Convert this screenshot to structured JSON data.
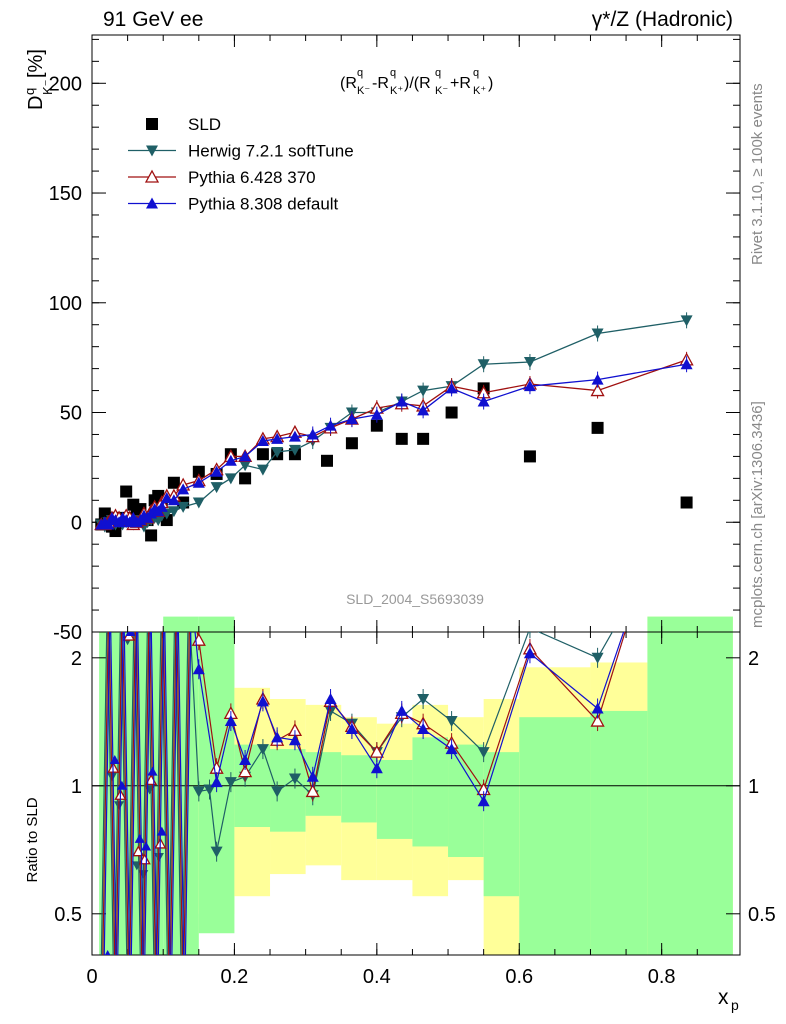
{
  "header": {
    "left": "91 GeV ee",
    "right": "γ*/Z (Hadronic)"
  },
  "side_text": {
    "rivet": "Rivet 3.1.10, ≥ 100k events",
    "url": "mcplots.cern.ch [arXiv:1306.3436]"
  },
  "watermark": "SLD_2004_S5693039",
  "chart_data": [
    {
      "type": "scatter",
      "panel": "main",
      "formula": "(R_K-^q - R_K+^q)/(R_K-^q + R_K+^q)",
      "ylabel": "D_K-^q [%]",
      "xlabel": "x_p",
      "xlim": [
        0,
        0.91
      ],
      "ylim": [
        -50,
        222
      ],
      "yticks": [
        -50,
        0,
        50,
        100,
        150,
        200
      ],
      "xticks": [
        0,
        0.2,
        0.4,
        0.6,
        0.8
      ],
      "legend_position": "top-left",
      "series": [
        {
          "name": "SLD",
          "marker": "square",
          "color": "#000000",
          "x": [
            0.013,
            0.018,
            0.023,
            0.028,
            0.033,
            0.038,
            0.043,
            0.048,
            0.053,
            0.058,
            0.063,
            0.068,
            0.073,
            0.078,
            0.083,
            0.088,
            0.093,
            0.098,
            0.105,
            0.115,
            0.128,
            0.15,
            0.175,
            0.195,
            0.215,
            0.24,
            0.26,
            0.285,
            0.33,
            0.365,
            0.4,
            0.435,
            0.465,
            0.505,
            0.55,
            0.615,
            0.71,
            0.835
          ],
          "y": [
            -1,
            4,
            2,
            -2,
            -4,
            1,
            2,
            14,
            2,
            8,
            3,
            6,
            2,
            1,
            -6,
            10,
            12,
            10,
            1,
            18,
            9,
            23,
            22,
            31,
            20,
            31,
            31,
            31,
            28,
            36,
            44,
            38,
            38,
            50,
            61,
            30,
            43,
            9
          ]
        },
        {
          "name": "Herwig 7.2.1 softTune",
          "marker": "triangle-down",
          "color": "#1f5f66",
          "x": [
            0.013,
            0.018,
            0.023,
            0.028,
            0.033,
            0.038,
            0.043,
            0.048,
            0.053,
            0.058,
            0.063,
            0.068,
            0.073,
            0.078,
            0.083,
            0.088,
            0.093,
            0.098,
            0.105,
            0.115,
            0.128,
            0.15,
            0.175,
            0.195,
            0.215,
            0.24,
            0.26,
            0.285,
            0.31,
            0.335,
            0.365,
            0.4,
            0.435,
            0.465,
            0.505,
            0.55,
            0.615,
            0.71,
            0.835
          ],
          "y": [
            -1,
            -2,
            0,
            1,
            -1,
            0,
            -1,
            0,
            1,
            -1,
            0,
            1,
            -2,
            0,
            1,
            2,
            1,
            3,
            4,
            5,
            7,
            9,
            16,
            20,
            26,
            24,
            32,
            33,
            37,
            43,
            50,
            50,
            55,
            60,
            62,
            72,
            73,
            86,
            92
          ]
        },
        {
          "name": "Pythia 6.428 370",
          "marker": "triangle-open",
          "color": "#a01010",
          "x": [
            0.013,
            0.018,
            0.023,
            0.028,
            0.033,
            0.038,
            0.043,
            0.048,
            0.053,
            0.058,
            0.063,
            0.068,
            0.073,
            0.078,
            0.083,
            0.088,
            0.093,
            0.098,
            0.105,
            0.115,
            0.128,
            0.15,
            0.175,
            0.195,
            0.215,
            0.24,
            0.26,
            0.285,
            0.31,
            0.335,
            0.365,
            0.4,
            0.435,
            0.465,
            0.505,
            0.55,
            0.615,
            0.71,
            0.835
          ],
          "y": [
            -1,
            -1,
            0,
            2,
            3,
            2,
            1,
            3,
            2,
            -1,
            0,
            1,
            4,
            2,
            5,
            7,
            5,
            9,
            12,
            12,
            17,
            19,
            24,
            30,
            30,
            38,
            39,
            41,
            39,
            43,
            47,
            52,
            54,
            53,
            62,
            59,
            63,
            60,
            74
          ]
        },
        {
          "name": "Pythia 8.308 default",
          "marker": "triangle-up",
          "color": "#1010d0",
          "x": [
            0.013,
            0.018,
            0.023,
            0.028,
            0.033,
            0.038,
            0.043,
            0.048,
            0.053,
            0.058,
            0.063,
            0.068,
            0.073,
            0.078,
            0.083,
            0.088,
            0.093,
            0.098,
            0.105,
            0.115,
            0.128,
            0.15,
            0.175,
            0.195,
            0.215,
            0.24,
            0.26,
            0.285,
            0.31,
            0.335,
            0.365,
            0.4,
            0.435,
            0.465,
            0.505,
            0.55,
            0.615,
            0.71,
            0.835
          ],
          "y": [
            -1,
            0,
            -1,
            2,
            1,
            0,
            2,
            1,
            0,
            2,
            0,
            1,
            3,
            2,
            4,
            6,
            5,
            7,
            11,
            10,
            15,
            18,
            23,
            28,
            30,
            37,
            38,
            39,
            40,
            44,
            47,
            49,
            55,
            51,
            61,
            55,
            62,
            65,
            72
          ]
        }
      ]
    },
    {
      "type": "line",
      "panel": "ratio",
      "ylabel": "Ratio to SLD",
      "xlabel": "x_p",
      "xlim": [
        0,
        0.91
      ],
      "ylim": [
        0.4,
        2.3
      ],
      "yscale": "log",
      "yticks": [
        0.5,
        1,
        2
      ],
      "xticks": [
        0,
        0.2,
        0.4,
        0.6,
        0.8
      ],
      "reference_line": 1,
      "band_colors": {
        "inner": "#99ff99",
        "outer": "#ffff99"
      },
      "series": [
        {
          "name": "Herwig 7.2.1 softTune",
          "color": "#1f5f66",
          "x": [
            0.15,
            0.165,
            0.175,
            0.195,
            0.215,
            0.24,
            0.26,
            0.285,
            0.31,
            0.335,
            0.365,
            0.4,
            0.435,
            0.465,
            0.505,
            0.55,
            0.615,
            0.71
          ],
          "y": [
            0.97,
            0.98,
            0.7,
            1.02,
            1.05,
            1.22,
            0.97,
            1.04,
            0.95,
            1.5,
            1.4,
            1.2,
            1.45,
            1.6,
            1.42,
            1.2,
            2.35,
            2.0
          ]
        },
        {
          "name": "Pythia 6.428 370",
          "color": "#a01010",
          "x": [
            0.15,
            0.175,
            0.195,
            0.215,
            0.24,
            0.26,
            0.285,
            0.31,
            0.335,
            0.365,
            0.4,
            0.435,
            0.465,
            0.505,
            0.55,
            0.615,
            0.71
          ],
          "y": [
            2.2,
            1.1,
            1.48,
            1.08,
            1.6,
            1.28,
            1.35,
            0.97,
            1.58,
            1.38,
            1.2,
            1.48,
            1.4,
            1.26,
            0.98,
            2.1,
            1.42
          ]
        },
        {
          "name": "Pythia 8.308 default",
          "color": "#1010d0",
          "x": [
            0.15,
            0.175,
            0.195,
            0.215,
            0.24,
            0.26,
            0.285,
            0.31,
            0.335,
            0.365,
            0.4,
            0.435,
            0.465,
            0.505,
            0.55,
            0.615,
            0.71
          ],
          "y": [
            1.88,
            1.02,
            1.42,
            1.15,
            1.58,
            1.3,
            1.28,
            1.05,
            1.6,
            1.36,
            1.1,
            1.5,
            1.36,
            1.22,
            0.92,
            2.05,
            1.52
          ]
        }
      ]
    }
  ]
}
